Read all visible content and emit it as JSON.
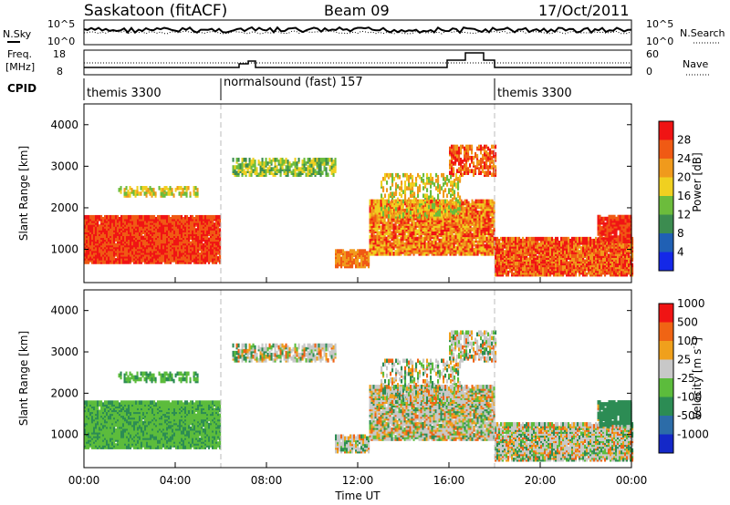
{
  "header": {
    "station": "Saskatoon (fitACF)",
    "beam": "Beam 09",
    "date": "17/Oct/2011"
  },
  "panels": {
    "nsky_label": "N.Sky",
    "nsearch_label": "N.Search",
    "freq_label_1": "Freq.",
    "freq_label_2": "[MHz]",
    "nave_label": "Nave",
    "cpid_label": "CPID",
    "nsky_ticks": [
      "10^5",
      "10^0"
    ],
    "nsearch_ticks": [
      "10^5",
      "10^0"
    ],
    "freq_ticks": [
      "18",
      "8"
    ],
    "nave_ticks": [
      "60",
      "0"
    ]
  },
  "cpid_segments": [
    {
      "label": "themis 3300",
      "start": 0,
      "end": 6
    },
    {
      "label": "normalsound (fast) 157",
      "start": 6,
      "end": 18
    },
    {
      "label": "themis 3300",
      "start": 18,
      "end": 24
    }
  ],
  "chart_data": [
    {
      "type": "heatmap",
      "quantity": "Power",
      "ylabel": "Slant Range [km]",
      "ylim": [
        200,
        4500
      ],
      "yticks": [
        1000,
        2000,
        3000,
        4000
      ],
      "xlim": [
        0,
        24
      ],
      "colorbar_label": "Power [dB]",
      "colorbar_ticks": [
        "4",
        "8",
        "12",
        "16",
        "20",
        "24",
        "28"
      ],
      "colors": [
        "#1428e8",
        "#2060b4",
        "#3c8c50",
        "#6cbc3c",
        "#f0d020",
        "#f09a1c",
        "#f05a14",
        "#f01414"
      ]
    },
    {
      "type": "heatmap",
      "quantity": "Velocity",
      "ylabel": "Slant Range [km]",
      "ylim": [
        200,
        4500
      ],
      "yticks": [
        1000,
        2000,
        3000,
        4000
      ],
      "xlim": [
        0,
        24
      ],
      "xlabel": "Time UT",
      "xticks": [
        "00:00",
        "04:00",
        "08:00",
        "12:00",
        "16:00",
        "20:00",
        "00:00"
      ],
      "colorbar_label": "Velocity [m s",
      "colorbar_unit_sup": "-1",
      "colorbar_unit_close": "]",
      "colorbar_ticks": [
        "1000",
        "500",
        "100",
        "25",
        "-25",
        "-100",
        "-500",
        "-1000"
      ],
      "colors": [
        "#1428c8",
        "#2c6ca8",
        "#2c8c54",
        "#5cbc3c",
        "#c8c8c8",
        "#f0a01c",
        "#f06414",
        "#f01414"
      ]
    }
  ]
}
